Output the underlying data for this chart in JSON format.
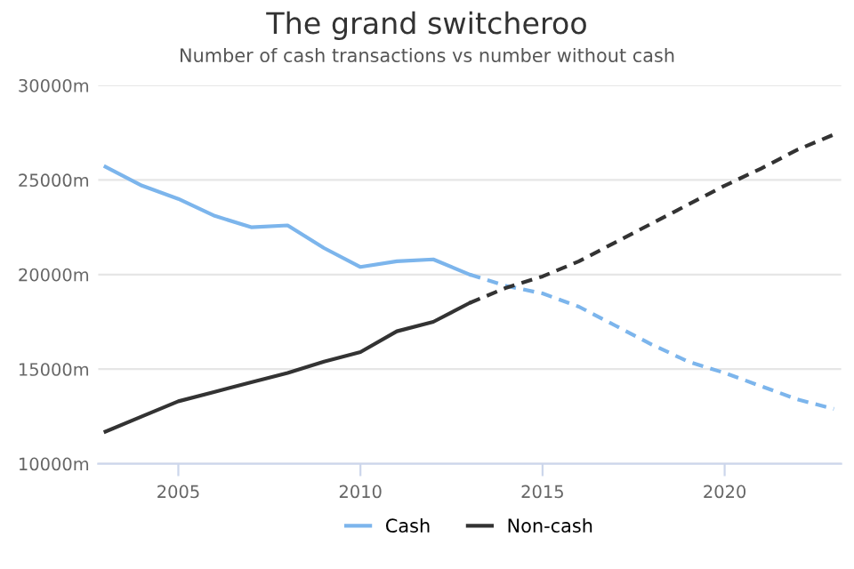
{
  "chart_data": {
    "type": "line",
    "title": "The grand switcheroo",
    "subtitle": "Number of cash transactions vs number without cash",
    "series": [
      {
        "name": "Cash",
        "color": "#7cb5ec",
        "line_style": "solid",
        "x": [
          2003,
          2004,
          2005,
          2006,
          2007,
          2008,
          2009,
          2010,
          2011,
          2012,
          2013
        ],
        "values": [
          25700,
          24700,
          24000,
          23100,
          22500,
          22600,
          21400,
          20400,
          20700,
          20800,
          20000
        ]
      },
      {
        "color": "#7cb5ec",
        "line_style": "dashed",
        "x": [
          2013,
          2014,
          2015,
          2016,
          2017,
          2018,
          2019,
          2020,
          2021,
          2022,
          2023
        ],
        "values": [
          20000,
          19400,
          19000,
          18300,
          17300,
          16300,
          15400,
          14800,
          14100,
          13400,
          12900
        ]
      },
      {
        "name": "Non-cash",
        "color": "#333333",
        "line_style": "solid",
        "x": [
          2003,
          2004,
          2005,
          2006,
          2007,
          2008,
          2009,
          2010,
          2011,
          2012,
          2013
        ],
        "values": [
          11700,
          12500,
          13300,
          13800,
          14300,
          14800,
          15400,
          15900,
          17000,
          17500,
          18500
        ]
      },
      {
        "color": "#333333",
        "line_style": "dashed",
        "x": [
          2013,
          2014,
          2015,
          2016,
          2017,
          2018,
          2019,
          2020,
          2021,
          2022,
          2023
        ],
        "values": [
          18500,
          19300,
          19900,
          20700,
          21700,
          22700,
          23700,
          24700,
          25600,
          26600,
          27400
        ]
      }
    ],
    "xlim": [
      2002.8,
      2023.2
    ],
    "xticks": [
      2005,
      2010,
      2015,
      2020
    ],
    "ylim": [
      10000,
      30000
    ],
    "yticks": [
      {
        "value": 10000,
        "label": "10000m"
      },
      {
        "value": 15000,
        "label": "15000m"
      },
      {
        "value": 20000,
        "label": "20000m"
      },
      {
        "value": 25000,
        "label": "25000m"
      },
      {
        "value": 30000,
        "label": "30000m"
      }
    ],
    "grid": "y",
    "legend": "bottom",
    "marker": "none"
  }
}
